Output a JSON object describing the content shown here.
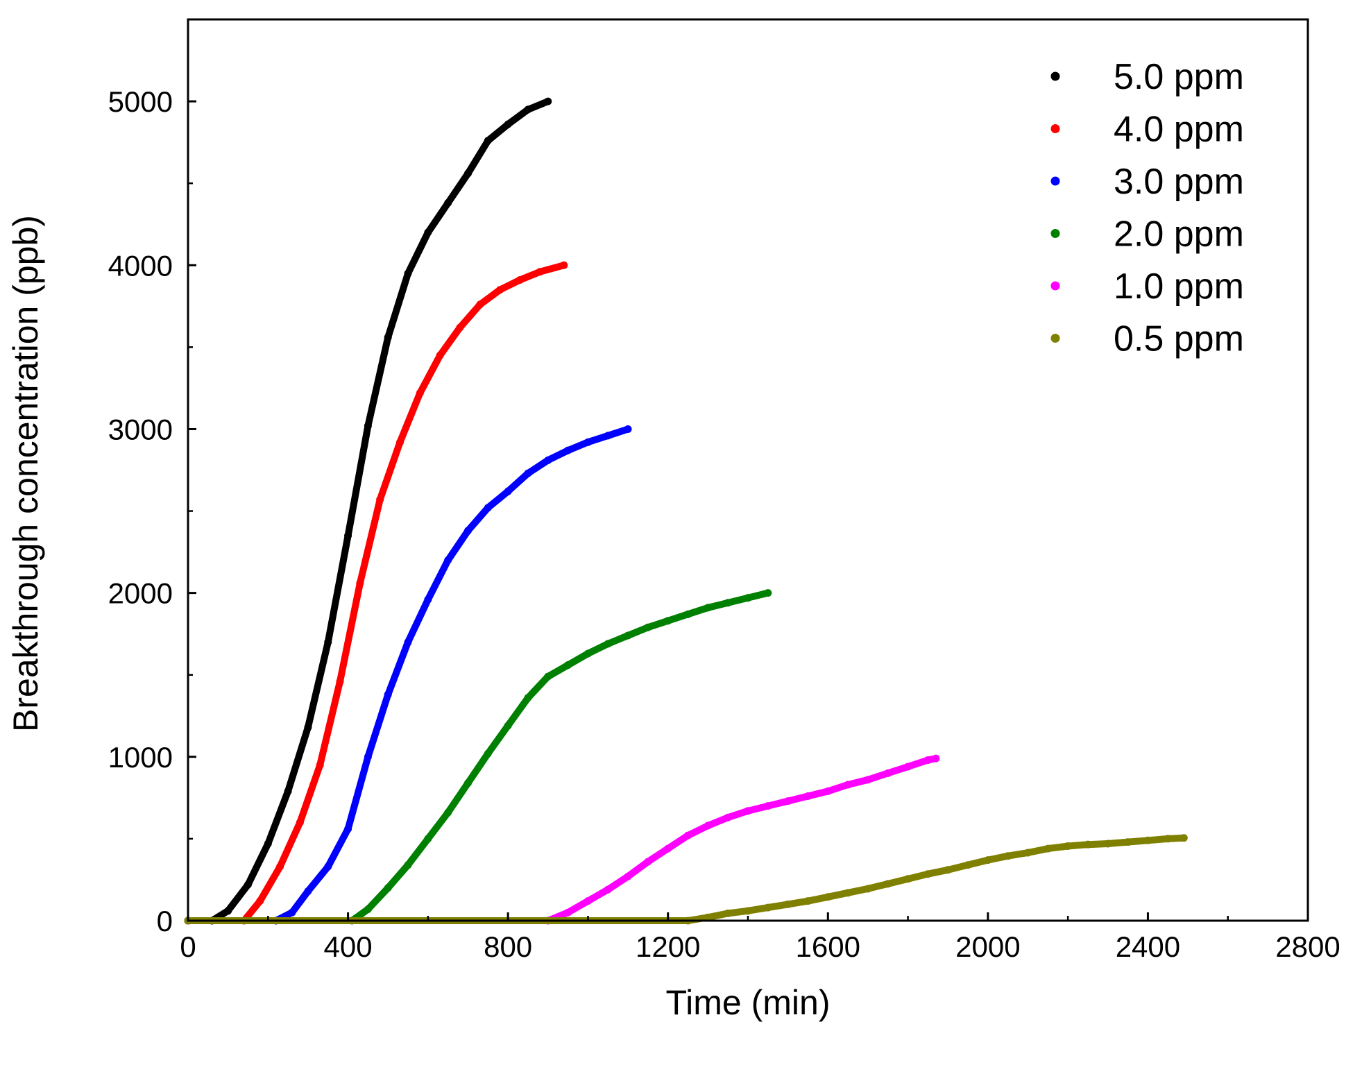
{
  "chart_data": {
    "type": "scatter",
    "title": "",
    "xlabel": "Time (min)",
    "ylabel": "Breakthrough concentration (ppb)",
    "xlim": [
      0,
      2800
    ],
    "ylim": [
      0,
      5500
    ],
    "x_ticks": [
      0,
      400,
      800,
      1200,
      1600,
      2000,
      2400,
      2800
    ],
    "x_tick_labels": [
      "0",
      "400",
      "800",
      "1200",
      "1600",
      "2000",
      "2400",
      "2800"
    ],
    "y_ticks": [
      0,
      1000,
      2000,
      3000,
      4000,
      5000
    ],
    "y_tick_labels": [
      "0",
      "1000",
      "2000",
      "3000",
      "4000",
      "5000"
    ],
    "grid": false,
    "legend_position": "top-right",
    "series": [
      {
        "name": "5.0 ppm",
        "color": "#000000",
        "points": [
          [
            0,
            0
          ],
          [
            60,
            0
          ],
          [
            100,
            60
          ],
          [
            150,
            220
          ],
          [
            200,
            470
          ],
          [
            250,
            790
          ],
          [
            300,
            1180
          ],
          [
            350,
            1700
          ],
          [
            400,
            2350
          ],
          [
            450,
            3020
          ],
          [
            500,
            3560
          ],
          [
            550,
            3950
          ],
          [
            600,
            4200
          ],
          [
            650,
            4380
          ],
          [
            700,
            4560
          ],
          [
            750,
            4760
          ],
          [
            800,
            4860
          ],
          [
            850,
            4950
          ],
          [
            900,
            5000
          ]
        ]
      },
      {
        "name": "4.0 ppm",
        "color": "#ff0000",
        "points": [
          [
            0,
            0
          ],
          [
            140,
            0
          ],
          [
            180,
            120
          ],
          [
            230,
            330
          ],
          [
            280,
            600
          ],
          [
            330,
            950
          ],
          [
            380,
            1460
          ],
          [
            430,
            2060
          ],
          [
            480,
            2570
          ],
          [
            530,
            2920
          ],
          [
            580,
            3220
          ],
          [
            630,
            3450
          ],
          [
            680,
            3620
          ],
          [
            730,
            3760
          ],
          [
            780,
            3850
          ],
          [
            830,
            3910
          ],
          [
            880,
            3960
          ],
          [
            940,
            4000
          ]
        ]
      },
      {
        "name": "3.0 ppm",
        "color": "#0000ff",
        "points": [
          [
            0,
            0
          ],
          [
            220,
            0
          ],
          [
            260,
            50
          ],
          [
            300,
            180
          ],
          [
            350,
            330
          ],
          [
            400,
            560
          ],
          [
            450,
            1000
          ],
          [
            500,
            1380
          ],
          [
            550,
            1700
          ],
          [
            600,
            1960
          ],
          [
            650,
            2200
          ],
          [
            700,
            2380
          ],
          [
            750,
            2520
          ],
          [
            800,
            2620
          ],
          [
            850,
            2730
          ],
          [
            900,
            2810
          ],
          [
            950,
            2870
          ],
          [
            1000,
            2920
          ],
          [
            1050,
            2960
          ],
          [
            1100,
            3000
          ]
        ]
      },
      {
        "name": "2.0 ppm",
        "color": "#008000",
        "points": [
          [
            0,
            0
          ],
          [
            410,
            0
          ],
          [
            450,
            70
          ],
          [
            500,
            200
          ],
          [
            550,
            340
          ],
          [
            600,
            500
          ],
          [
            650,
            660
          ],
          [
            700,
            840
          ],
          [
            750,
            1020
          ],
          [
            800,
            1190
          ],
          [
            850,
            1360
          ],
          [
            900,
            1490
          ],
          [
            950,
            1560
          ],
          [
            1000,
            1630
          ],
          [
            1050,
            1690
          ],
          [
            1100,
            1740
          ],
          [
            1150,
            1790
          ],
          [
            1200,
            1830
          ],
          [
            1250,
            1870
          ],
          [
            1300,
            1910
          ],
          [
            1350,
            1940
          ],
          [
            1400,
            1970
          ],
          [
            1450,
            2000
          ]
        ]
      },
      {
        "name": "1.0 ppm",
        "color": "#ff00ff",
        "points": [
          [
            0,
            0
          ],
          [
            900,
            0
          ],
          [
            950,
            50
          ],
          [
            1000,
            120
          ],
          [
            1050,
            190
          ],
          [
            1100,
            270
          ],
          [
            1150,
            360
          ],
          [
            1200,
            440
          ],
          [
            1250,
            520
          ],
          [
            1300,
            580
          ],
          [
            1350,
            630
          ],
          [
            1400,
            670
          ],
          [
            1450,
            700
          ],
          [
            1500,
            730
          ],
          [
            1550,
            760
          ],
          [
            1600,
            790
          ],
          [
            1650,
            830
          ],
          [
            1700,
            860
          ],
          [
            1750,
            900
          ],
          [
            1800,
            940
          ],
          [
            1850,
            980
          ],
          [
            1870,
            990
          ]
        ]
      },
      {
        "name": "0.5 ppm",
        "color": "#808000",
        "points": [
          [
            0,
            0
          ],
          [
            1250,
            0
          ],
          [
            1300,
            20
          ],
          [
            1350,
            45
          ],
          [
            1400,
            60
          ],
          [
            1450,
            80
          ],
          [
            1500,
            100
          ],
          [
            1550,
            120
          ],
          [
            1600,
            145
          ],
          [
            1650,
            170
          ],
          [
            1700,
            195
          ],
          [
            1750,
            225
          ],
          [
            1800,
            255
          ],
          [
            1850,
            285
          ],
          [
            1900,
            310
          ],
          [
            1950,
            340
          ],
          [
            2000,
            370
          ],
          [
            2050,
            395
          ],
          [
            2100,
            415
          ],
          [
            2150,
            440
          ],
          [
            2200,
            455
          ],
          [
            2250,
            465
          ],
          [
            2300,
            470
          ],
          [
            2350,
            480
          ],
          [
            2400,
            490
          ],
          [
            2450,
            500
          ],
          [
            2490,
            505
          ]
        ]
      }
    ]
  }
}
